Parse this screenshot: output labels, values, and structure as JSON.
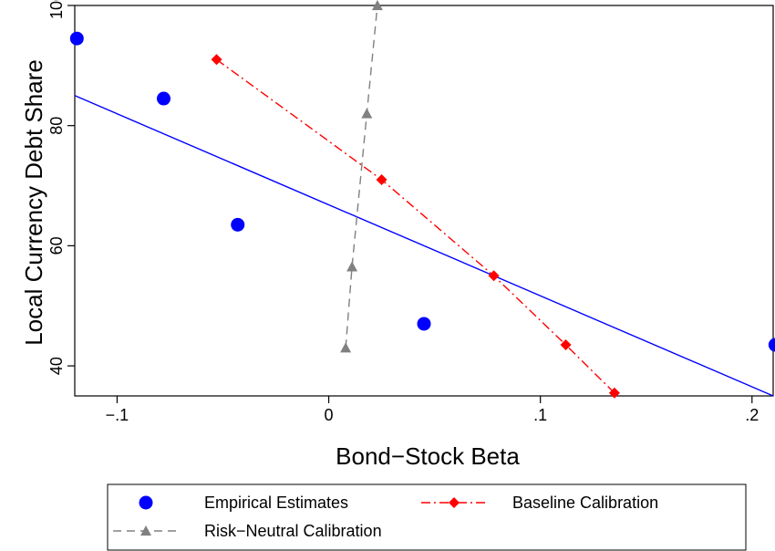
{
  "chart_data": {
    "type": "scatter",
    "title": "",
    "xlabel": "Bond−Stock Beta",
    "ylabel": "Local Currency Debt Share",
    "xlim": [
      -0.12,
      0.21
    ],
    "ylim": [
      35,
      100
    ],
    "x_ticks": [
      -0.1,
      0,
      0.1,
      0.2
    ],
    "x_tick_labels": [
      "−.1",
      "0",
      ".1",
      ".2"
    ],
    "y_ticks": [
      40,
      60,
      80,
      100
    ],
    "y_tick_labels": [
      "40",
      "60",
      "80",
      "100"
    ],
    "grid": false,
    "legend_position": "bottom",
    "series": [
      {
        "name": "Empirical Estimates",
        "kind": "scatter",
        "marker": "circle",
        "color": "#0000ff",
        "points": [
          {
            "x": -0.119,
            "y": 94.5
          },
          {
            "x": -0.078,
            "y": 84.5
          },
          {
            "x": -0.043,
            "y": 63.5
          },
          {
            "x": 0.045,
            "y": 47.0
          },
          {
            "x": 0.211,
            "y": 43.5
          }
        ]
      },
      {
        "name": "",
        "kind": "fit-line",
        "color": "#0000ff",
        "points": [
          {
            "x": -0.12,
            "y": 85.0
          },
          {
            "x": 0.21,
            "y": 35.0
          }
        ]
      },
      {
        "name": "Baseline Calibration",
        "kind": "line",
        "marker": "diamond",
        "dash": "dash-dot",
        "color": "#ff0000",
        "points": [
          {
            "x": -0.053,
            "y": 91.0
          },
          {
            "x": 0.025,
            "y": 71.0
          },
          {
            "x": 0.078,
            "y": 55.0
          },
          {
            "x": 0.112,
            "y": 43.5
          },
          {
            "x": 0.135,
            "y": 35.5
          }
        ]
      },
      {
        "name": "Risk−Neutral Calibration",
        "kind": "line",
        "marker": "triangle",
        "dash": "dashed",
        "color": "#808080",
        "points": [
          {
            "x": 0.008,
            "y": 43.0
          },
          {
            "x": 0.011,
            "y": 56.5
          },
          {
            "x": 0.018,
            "y": 82.0
          },
          {
            "x": 0.023,
            "y": 100.0
          }
        ]
      }
    ]
  }
}
